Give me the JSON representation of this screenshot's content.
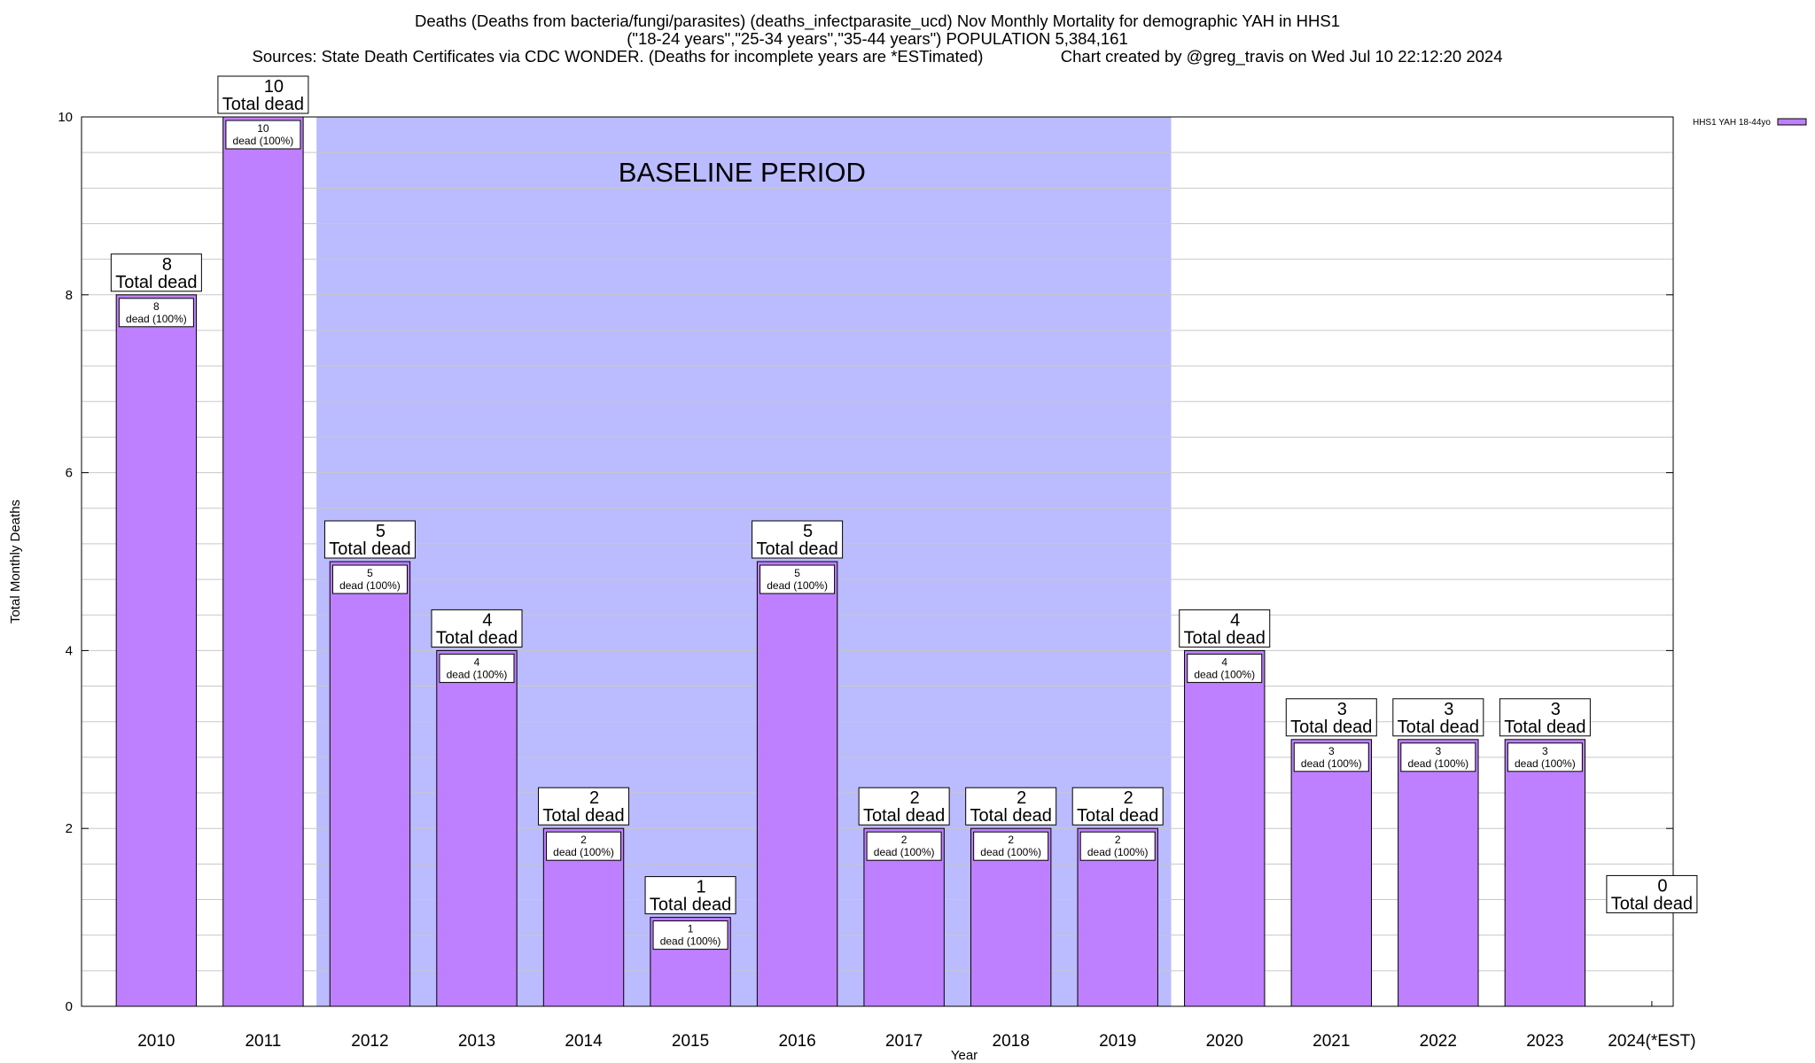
{
  "title_lines": [
    "Deaths (Deaths from bacteria/fungi/parasites) (deaths_infectparasite_ucd) Nov Monthly Mortality for demographic YAH in HHS1",
    "(\"18-24 years\",\"25-34 years\",\"35-44 years\") POPULATION 5,384,161",
    "Sources: State Death Certificates via CDC WONDER. (Deaths for incomplete years are *ESTimated)                 Chart created by @greg_travis on Wed Jul 10 22:12:20 2024"
  ],
  "chart_data": {
    "type": "bar",
    "categories": [
      "2010",
      "2011",
      "2012",
      "2013",
      "2014",
      "2015",
      "2016",
      "2017",
      "2018",
      "2019",
      "2020",
      "2021",
      "2022",
      "2023",
      "2024(*EST)"
    ],
    "series": [
      {
        "name": "HHS1 YAH 18-44yo",
        "values": [
          8,
          10,
          5,
          4,
          2,
          1,
          5,
          2,
          2,
          2,
          4,
          3,
          3,
          3,
          0
        ]
      }
    ],
    "xlabel": "Year",
    "ylabel": "Total Monthly Deaths",
    "ylim": [
      0,
      10
    ],
    "yticks": [
      0,
      2,
      4,
      6,
      8,
      10
    ],
    "grid": true,
    "legend_position": "top-right",
    "total_label_suffix": "Total dead",
    "bar_label_suffix": "dead (100%)",
    "baseline": {
      "label": "BASELINE PERIOD",
      "from": "2012",
      "to": "2019"
    },
    "colors": {
      "bar": "#bf80ff",
      "baseline": "#bbbbff",
      "grid": "#c8c8c8"
    }
  }
}
